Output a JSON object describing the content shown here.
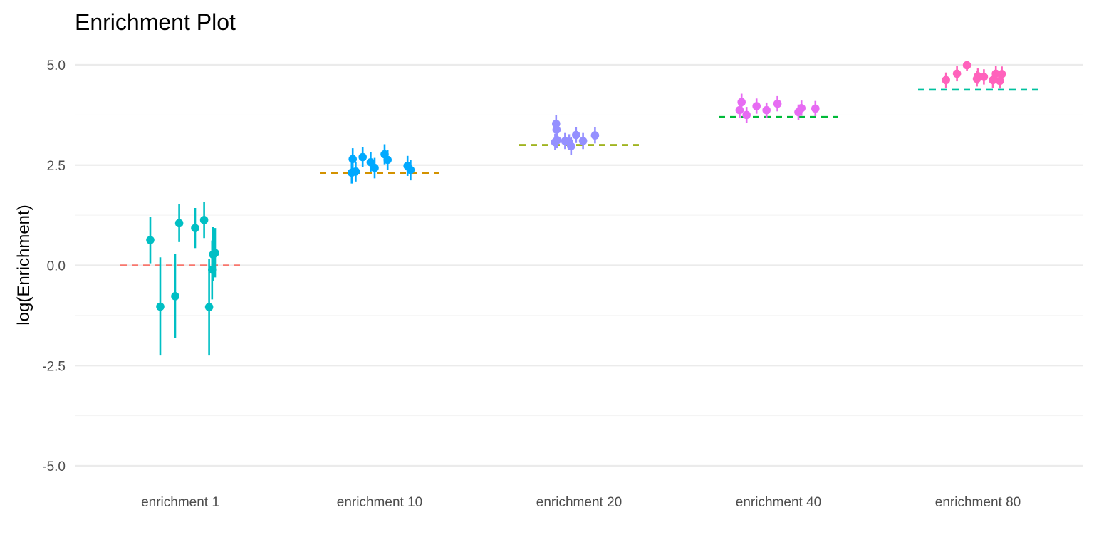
{
  "chart_data": {
    "type": "scatter",
    "title": "Enrichment Plot",
    "xlabel": "",
    "ylabel": "log(Enrichment)",
    "ylim": [
      -5.35,
      5.5
    ],
    "y_ticks": [
      "-5.0",
      "-2.5",
      "0.0",
      "2.5",
      "5.0"
    ],
    "y_tick_values": [
      -5,
      -2.5,
      0,
      2.5,
      5
    ],
    "y_minor_values": [
      -3.75,
      -1.25,
      1.25,
      3.75
    ],
    "grid": true,
    "legend": "none",
    "categories": [
      "enrichment 1",
      "enrichment 10",
      "enrichment 20",
      "enrichment 40",
      "enrichment 80"
    ],
    "series": [
      {
        "category": "enrichment 1",
        "reference": 0.0,
        "reference_color": "#F8766D",
        "color": "#00BFC4",
        "points": [
          {
            "dx": -0.15,
            "y": 0.63,
            "lo": 0.05,
            "hi": 1.2
          },
          {
            "dx": -0.1,
            "y": -1.03,
            "lo": -2.25,
            "hi": 0.2
          },
          {
            "dx": -0.025,
            "y": -0.77,
            "lo": -1.82,
            "hi": 0.28
          },
          {
            "dx": -0.005,
            "y": 1.05,
            "lo": 0.58,
            "hi": 1.52
          },
          {
            "dx": 0.075,
            "y": 0.93,
            "lo": 0.43,
            "hi": 1.43
          },
          {
            "dx": 0.12,
            "y": 1.13,
            "lo": 0.68,
            "hi": 1.58
          },
          {
            "dx": 0.145,
            "y": -1.04,
            "lo": -2.25,
            "hi": 0.15
          },
          {
            "dx": 0.16,
            "y": -0.11,
            "lo": -0.85,
            "hi": 0.62
          },
          {
            "dx": 0.165,
            "y": 0.27,
            "lo": -0.4,
            "hi": 0.95
          },
          {
            "dx": 0.175,
            "y": 0.31,
            "lo": -0.3,
            "hi": 0.93
          }
        ]
      },
      {
        "category": "enrichment 10",
        "reference": 2.3,
        "reference_color": "#D39200",
        "color": "#00A9FF",
        "points": [
          {
            "dx": -0.14,
            "y": 2.31,
            "lo": 2.04,
            "hi": 2.6
          },
          {
            "dx": -0.135,
            "y": 2.65,
            "lo": 2.38,
            "hi": 2.92
          },
          {
            "dx": -0.12,
            "y": 2.34,
            "lo": 2.09,
            "hi": 2.58
          },
          {
            "dx": -0.085,
            "y": 2.7,
            "lo": 2.45,
            "hi": 2.95
          },
          {
            "dx": -0.045,
            "y": 2.57,
            "lo": 2.32,
            "hi": 2.82
          },
          {
            "dx": -0.025,
            "y": 2.43,
            "lo": 2.17,
            "hi": 2.68
          },
          {
            "dx": 0.025,
            "y": 2.77,
            "lo": 2.52,
            "hi": 3.02
          },
          {
            "dx": 0.04,
            "y": 2.63,
            "lo": 2.38,
            "hi": 2.88
          },
          {
            "dx": 0.14,
            "y": 2.48,
            "lo": 2.23,
            "hi": 2.73
          },
          {
            "dx": 0.155,
            "y": 2.38,
            "lo": 2.12,
            "hi": 2.63
          }
        ]
      },
      {
        "category": "enrichment 20",
        "reference": 3.0,
        "reference_color": "#93AA00",
        "color": "#9590FF",
        "points": [
          {
            "dx": -0.12,
            "y": 3.07,
            "lo": 2.88,
            "hi": 3.28
          },
          {
            "dx": -0.115,
            "y": 3.53,
            "lo": 3.33,
            "hi": 3.75
          },
          {
            "dx": -0.113,
            "y": 3.38,
            "lo": 3.18,
            "hi": 3.58
          },
          {
            "dx": -0.11,
            "y": 3.12,
            "lo": 2.92,
            "hi": 3.32
          },
          {
            "dx": -0.07,
            "y": 3.1,
            "lo": 2.9,
            "hi": 3.3
          },
          {
            "dx": -0.05,
            "y": 3.07,
            "lo": 2.87,
            "hi": 3.27
          },
          {
            "dx": -0.04,
            "y": 2.97,
            "lo": 2.75,
            "hi": 3.19
          },
          {
            "dx": -0.015,
            "y": 3.25,
            "lo": 3.05,
            "hi": 3.45
          },
          {
            "dx": 0.02,
            "y": 3.1,
            "lo": 2.9,
            "hi": 3.3
          },
          {
            "dx": 0.08,
            "y": 3.24,
            "lo": 3.04,
            "hi": 3.44
          }
        ]
      },
      {
        "category": "enrichment 40",
        "reference": 3.7,
        "reference_color": "#00BA38",
        "color": "#E76BF3",
        "points": [
          {
            "dx": -0.195,
            "y": 3.87,
            "lo": 3.68,
            "hi": 4.06
          },
          {
            "dx": -0.185,
            "y": 4.07,
            "lo": 3.87,
            "hi": 4.28
          },
          {
            "dx": -0.16,
            "y": 3.75,
            "lo": 3.56,
            "hi": 3.95
          },
          {
            "dx": -0.11,
            "y": 3.97,
            "lo": 3.78,
            "hi": 4.16
          },
          {
            "dx": -0.06,
            "y": 3.87,
            "lo": 3.68,
            "hi": 4.06
          },
          {
            "dx": -0.005,
            "y": 4.03,
            "lo": 3.84,
            "hi": 4.22
          },
          {
            "dx": 0.1,
            "y": 3.82,
            "lo": 3.63,
            "hi": 4.01
          },
          {
            "dx": 0.115,
            "y": 3.92,
            "lo": 3.73,
            "hi": 4.11
          },
          {
            "dx": 0.185,
            "y": 3.91,
            "lo": 3.72,
            "hi": 4.1
          }
        ]
      },
      {
        "category": "enrichment 80",
        "reference": 4.38,
        "reference_color": "#00C19F",
        "color": "#FF62BC",
        "points": [
          {
            "dx": -0.16,
            "y": 4.62,
            "lo": 4.43,
            "hi": 4.81
          },
          {
            "dx": -0.105,
            "y": 4.78,
            "lo": 4.59,
            "hi": 4.97
          },
          {
            "dx": -0.055,
            "y": 4.99,
            "lo": 4.85,
            "hi": 5.08
          },
          {
            "dx": -0.005,
            "y": 4.65,
            "lo": 4.46,
            "hi": 4.84
          },
          {
            "dx": 0.0,
            "y": 4.72,
            "lo": 4.53,
            "hi": 4.91
          },
          {
            "dx": 0.03,
            "y": 4.7,
            "lo": 4.51,
            "hi": 4.89
          },
          {
            "dx": 0.075,
            "y": 4.62,
            "lo": 4.43,
            "hi": 4.81
          },
          {
            "dx": 0.09,
            "y": 4.78,
            "lo": 4.59,
            "hi": 4.97
          },
          {
            "dx": 0.11,
            "y": 4.6,
            "lo": 4.41,
            "hi": 4.79
          },
          {
            "dx": 0.12,
            "y": 4.77,
            "lo": 4.58,
            "hi": 4.96
          }
        ]
      }
    ]
  }
}
